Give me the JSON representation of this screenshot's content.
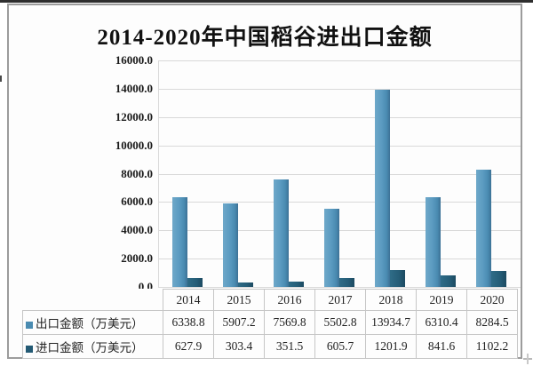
{
  "page": {
    "title": "2014-2020年中国稻谷进出口金额"
  },
  "chart_data": {
    "type": "bar",
    "title": "2014-2020年中国稻谷进出口金额",
    "unit": "万美元",
    "categories": [
      "2014",
      "2015",
      "2016",
      "2017",
      "2018",
      "2019",
      "2020"
    ],
    "series": [
      {
        "name": "出口金额（万美元）",
        "legend_color": "#4a8bb1",
        "values": [
          6338.8,
          5907.2,
          7569.8,
          5502.8,
          13934.7,
          6310.4,
          8284.5
        ]
      },
      {
        "name": "进口金额（万美元）",
        "legend_color": "#235a74",
        "values": [
          627.9,
          303.4,
          351.5,
          605.7,
          1201.9,
          841.6,
          1102.2
        ]
      }
    ],
    "ylim": [
      0,
      16000
    ],
    "ytick_labels": [
      "16000.0",
      "14000.0",
      "12000.0",
      "10000.0",
      "8000.0",
      "6000.0",
      "4000.0",
      "2000.0",
      "0.0"
    ],
    "grid": true,
    "grid_color": "#d9d9d9",
    "legend_position": "table-left-column",
    "colors": {
      "export_bar": "#5b9bc1",
      "import_bar": "#255d77",
      "title_text": "#111111",
      "table_border": "#c6c6c6"
    }
  }
}
